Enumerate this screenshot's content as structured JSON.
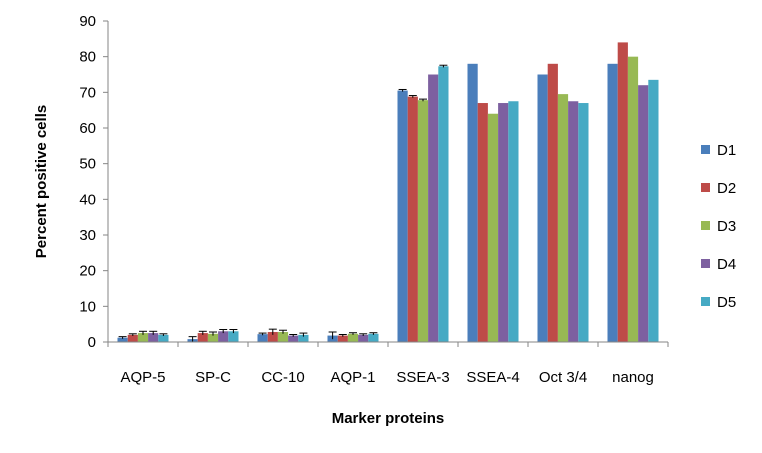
{
  "chart_data": {
    "type": "bar",
    "xlabel": "Marker proteins",
    "ylabel": "Percent positive cells",
    "ylim": [
      0,
      90
    ],
    "yticks": [
      0,
      10,
      20,
      30,
      40,
      50,
      60,
      70,
      80,
      90
    ],
    "grid": false,
    "legend_position": "right",
    "categories": [
      "AQP-5",
      "SP-C",
      "CC-10",
      "AQP-1",
      "SSEA-3",
      "SSEA-4",
      "Oct 3/4",
      "nanog"
    ],
    "series": [
      {
        "name": "D1",
        "color": "#4A7EBB",
        "values": [
          1.2,
          0.8,
          2.2,
          1.8,
          70.5,
          78,
          75,
          78
        ],
        "errors": [
          0.3,
          0.7,
          0.3,
          1.0,
          0.3,
          0,
          0,
          0
        ]
      },
      {
        "name": "D2",
        "color": "#BE4B48",
        "values": [
          2.0,
          2.5,
          2.8,
          1.8,
          68.8,
          67,
          78,
          84
        ],
        "errors": [
          0.3,
          0.5,
          0.8,
          0.3,
          0.3,
          0,
          0,
          0
        ]
      },
      {
        "name": "D3",
        "color": "#98B954",
        "values": [
          2.5,
          2.3,
          2.8,
          2.3,
          67.8,
          64,
          69.5,
          80
        ],
        "errors": [
          0.5,
          0.5,
          0.5,
          0.3,
          0.3,
          0,
          0,
          0
        ]
      },
      {
        "name": "D4",
        "color": "#7D60A0",
        "values": [
          2.5,
          3.0,
          1.8,
          2.0,
          75,
          67,
          67.5,
          72
        ],
        "errors": [
          0.5,
          0.5,
          0.3,
          0.3,
          0,
          0,
          0,
          0
        ]
      },
      {
        "name": "D5",
        "color": "#46AAC4",
        "values": [
          2.0,
          3.0,
          2.0,
          2.3,
          77.3,
          67.5,
          67,
          73.5
        ],
        "errors": [
          0.3,
          0.5,
          0.5,
          0.3,
          0.3,
          0,
          0,
          0
        ]
      }
    ]
  }
}
